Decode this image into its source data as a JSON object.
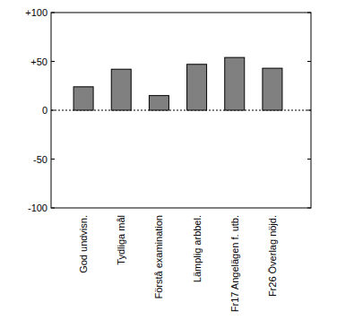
{
  "chart_data": {
    "type": "bar",
    "categories": [
      "God undvisn.",
      "Tydliga mål",
      "Förstå examination",
      "Lämplig arbbel.",
      "Fr17 Angelägen f. utb.",
      "Fr26 Överlag nöjd."
    ],
    "values": [
      24,
      42,
      15,
      47,
      54,
      43
    ],
    "color": "#808080",
    "ylim": [
      -100,
      100
    ],
    "yticks": [
      {
        "value": -100,
        "label": "-100"
      },
      {
        "value": -50,
        "label": "-50"
      },
      0,
      {
        "value": 50,
        "label": "+50"
      },
      {
        "value": 100,
        "label": "+100"
      }
    ],
    "grid": false
  }
}
